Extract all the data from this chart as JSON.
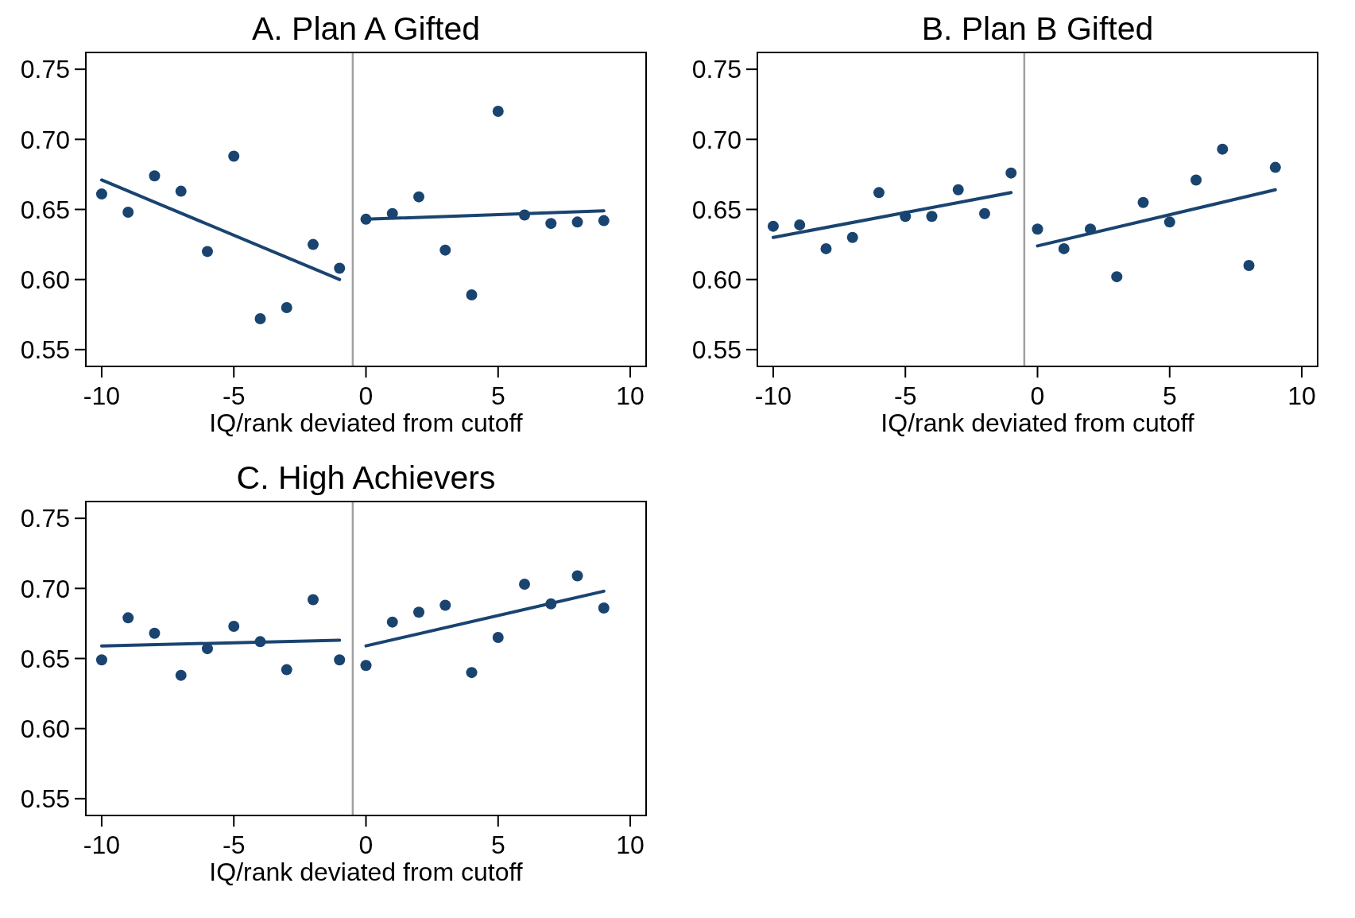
{
  "chart_data": [
    {
      "type": "scatter",
      "title": "A. Plan A Gifted",
      "xlabel": "IQ/rank deviated from cutoff",
      "xlim": [
        -10.6,
        10.6
      ],
      "xticks": [
        -10,
        -5,
        0,
        5,
        10
      ],
      "ylim": [
        0.538,
        0.762
      ],
      "yticks": [
        {
          "value": 0.55,
          "label": "0.55"
        },
        {
          "value": 0.6,
          "label": "0.60"
        },
        {
          "value": 0.65,
          "label": "0.65"
        },
        {
          "value": 0.7,
          "label": "0.70"
        },
        {
          "value": 0.75,
          "label": "0.75"
        }
      ],
      "grid": false,
      "ref_lines": [
        {
          "axis": "x",
          "value": -0.5,
          "color": "#a0a0a0"
        }
      ],
      "series": [
        {
          "marker": "circle",
          "color": "#1a4470",
          "x": [
            -10,
            -9,
            -8,
            -7,
            -6,
            -5,
            -4,
            -3,
            -2,
            -1,
            0,
            1,
            2,
            3,
            4,
            5,
            6,
            7,
            8,
            9
          ],
          "values": [
            0.661,
            0.648,
            0.674,
            0.663,
            0.62,
            0.688,
            0.572,
            0.58,
            0.625,
            0.608,
            0.643,
            0.647,
            0.659,
            0.621,
            0.589,
            0.72,
            0.646,
            0.64,
            0.641,
            0.642
          ]
        },
        {
          "type": "line",
          "color": "#1a4470",
          "x": [
            -10,
            -1
          ],
          "values": [
            0.671,
            0.6
          ]
        },
        {
          "type": "line",
          "color": "#1a4470",
          "x": [
            0,
            9
          ],
          "values": [
            0.643,
            0.649
          ]
        }
      ]
    },
    {
      "type": "scatter",
      "title": "B. Plan B Gifted",
      "xlabel": "IQ/rank deviated from cutoff",
      "xlim": [
        -10.6,
        10.6
      ],
      "xticks": [
        -10,
        -5,
        0,
        5,
        10
      ],
      "ylim": [
        0.538,
        0.762
      ],
      "yticks": [
        {
          "value": 0.55,
          "label": "0.55"
        },
        {
          "value": 0.6,
          "label": "0.60"
        },
        {
          "value": 0.65,
          "label": "0.65"
        },
        {
          "value": 0.7,
          "label": "0.70"
        },
        {
          "value": 0.75,
          "label": "0.75"
        }
      ],
      "grid": false,
      "ref_lines": [
        {
          "axis": "x",
          "value": -0.5,
          "color": "#a0a0a0"
        }
      ],
      "series": [
        {
          "marker": "circle",
          "color": "#1a4470",
          "x": [
            -10,
            -9,
            -8,
            -7,
            -6,
            -5,
            -4,
            -3,
            -2,
            -1,
            0,
            1,
            2,
            3,
            4,
            5,
            6,
            7,
            8,
            9
          ],
          "values": [
            0.638,
            0.639,
            0.622,
            0.63,
            0.662,
            0.645,
            0.645,
            0.664,
            0.647,
            0.676,
            0.636,
            0.622,
            0.636,
            0.602,
            0.655,
            0.641,
            0.671,
            0.693,
            0.61,
            0.68
          ]
        },
        {
          "type": "line",
          "color": "#1a4470",
          "x": [
            -10,
            -1
          ],
          "values": [
            0.63,
            0.662
          ]
        },
        {
          "type": "line",
          "color": "#1a4470",
          "x": [
            0,
            9
          ],
          "values": [
            0.624,
            0.664
          ]
        }
      ]
    },
    {
      "type": "scatter",
      "title": "C. High Achievers",
      "xlabel": "IQ/rank deviated from cutoff",
      "xlim": [
        -10.6,
        10.6
      ],
      "xticks": [
        -10,
        -5,
        0,
        5,
        10
      ],
      "ylim": [
        0.538,
        0.762
      ],
      "yticks": [
        {
          "value": 0.55,
          "label": "0.55"
        },
        {
          "value": 0.6,
          "label": "0.60"
        },
        {
          "value": 0.65,
          "label": "0.65"
        },
        {
          "value": 0.7,
          "label": "0.70"
        },
        {
          "value": 0.75,
          "label": "0.75"
        }
      ],
      "grid": false,
      "ref_lines": [
        {
          "axis": "x",
          "value": -0.5,
          "color": "#a0a0a0"
        }
      ],
      "series": [
        {
          "marker": "circle",
          "color": "#1a4470",
          "x": [
            -10,
            -9,
            -8,
            -7,
            -6,
            -5,
            -4,
            -3,
            -2,
            -1,
            0,
            1,
            2,
            3,
            4,
            5,
            6,
            7,
            8,
            9
          ],
          "values": [
            0.649,
            0.679,
            0.668,
            0.638,
            0.657,
            0.673,
            0.662,
            0.642,
            0.692,
            0.649,
            0.645,
            0.676,
            0.683,
            0.688,
            0.64,
            0.665,
            0.703,
            0.689,
            0.709,
            0.686
          ]
        },
        {
          "type": "line",
          "color": "#1a4470",
          "x": [
            -10,
            -1
          ],
          "values": [
            0.659,
            0.663
          ]
        },
        {
          "type": "line",
          "color": "#1a4470",
          "x": [
            0,
            9
          ],
          "values": [
            0.659,
            0.698
          ]
        }
      ]
    }
  ]
}
